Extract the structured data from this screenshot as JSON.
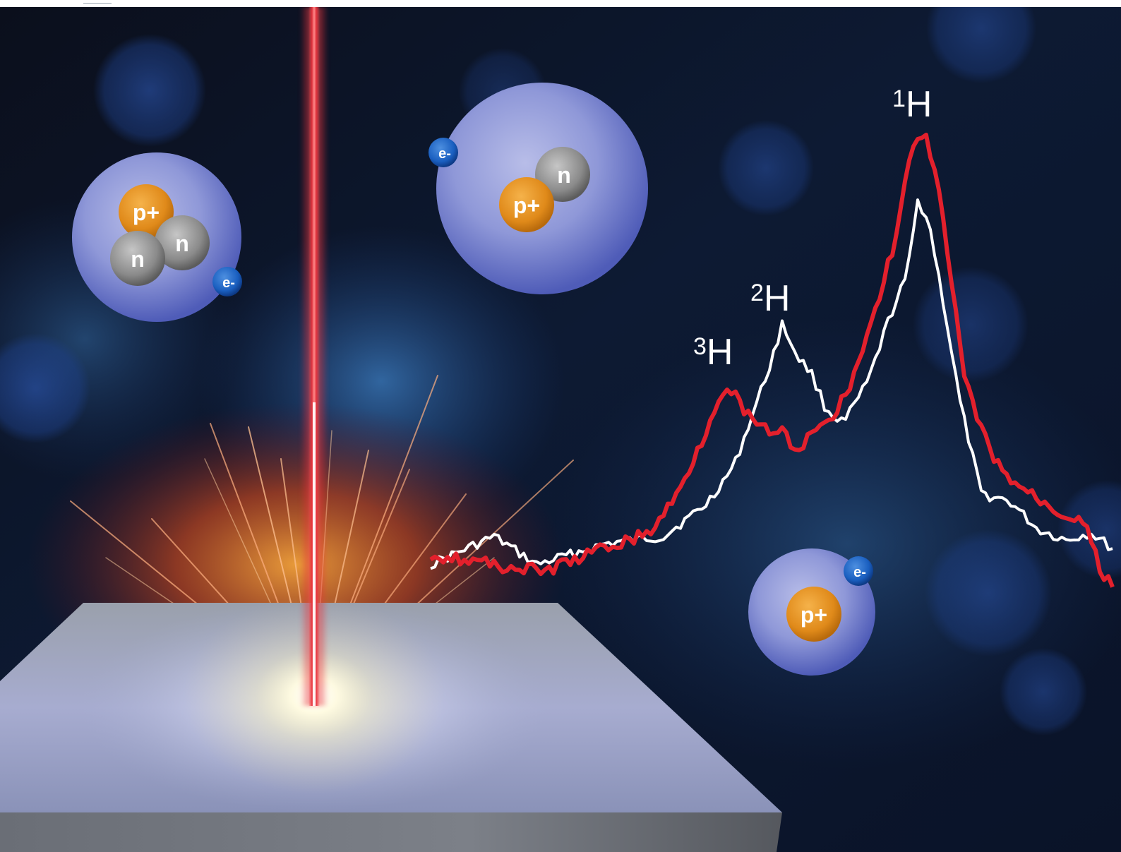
{
  "scene": {
    "labels": {
      "h3": {
        "mass": "3",
        "symbol": "H"
      },
      "h2": {
        "mass": "2",
        "symbol": "H"
      },
      "h1": {
        "mass": "1",
        "symbol": "H"
      }
    },
    "tritium_atom": {
      "proton": "p+",
      "neutron_a": "n",
      "neutron_b": "n",
      "electron": "e-"
    },
    "deuterium_atom": {
      "proton": "p+",
      "neutron": "n",
      "electron": "e-"
    },
    "protium_atom": {
      "proton": "p+",
      "electron": "e-"
    },
    "colors": {
      "background": "#0a1020",
      "laser": "#e8303a",
      "red_spectrum": "#e3202c",
      "white_spectrum": "#ffffff",
      "electron_cloud": "#6a78d0",
      "proton": "#e08a1a",
      "neutron": "#8a8a8a",
      "electron": "#1a5fc0",
      "target_plate": "#8c96b4"
    }
  }
}
